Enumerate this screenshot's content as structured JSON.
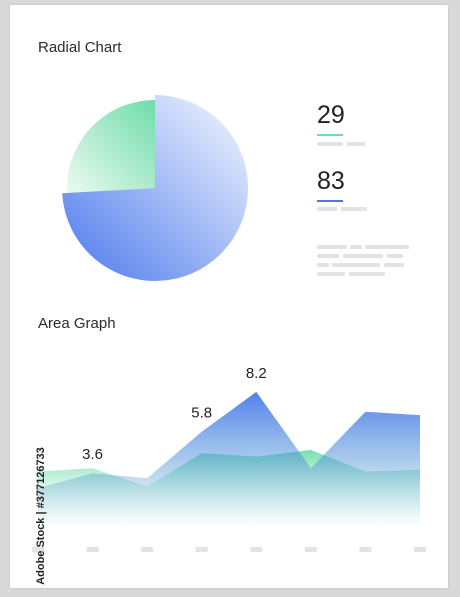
{
  "colors": {
    "green": "#6fdcaa",
    "blue": "#4a78ec",
    "teal": "#4fa7c4",
    "placeholder": "#e3e3e3"
  },
  "radial": {
    "title": "Radial Chart",
    "stats": [
      {
        "value": "29",
        "color": "#6fdcaa"
      },
      {
        "value": "83",
        "color": "#4a78ec"
      }
    ]
  },
  "watermark": "Adobe Stock | #377126733",
  "chart_data": [
    {
      "type": "pie",
      "title": "Radial Chart",
      "slices": [
        {
          "label": "",
          "value": 29,
          "color": "#6fdcaa"
        },
        {
          "label": "",
          "value": 83,
          "color": "#4a78ec"
        }
      ]
    },
    {
      "type": "area",
      "title": "Area Graph",
      "x": [
        1,
        2,
        3,
        4,
        5,
        6,
        7,
        8
      ],
      "series": [
        {
          "color": "#6fdcaa",
          "values": [
            3.4,
            3.6,
            2.5,
            4.5,
            4.3,
            4.7,
            3.4,
            3.5
          ]
        },
        {
          "color": "#4a78ec",
          "values": [
            2.4,
            3.3,
            3.0,
            5.8,
            8.2,
            3.6,
            7.0,
            6.8
          ]
        }
      ],
      "data_labels": [
        {
          "x": 2,
          "text": "3.6"
        },
        {
          "x": 4,
          "text": "5.8"
        },
        {
          "x": 5,
          "text": "8.2"
        }
      ],
      "ylim": [
        0,
        10
      ]
    }
  ]
}
